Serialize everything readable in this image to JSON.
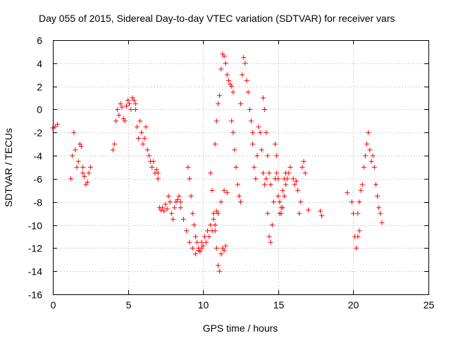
{
  "chart_data": {
    "type": "scatter",
    "title": "Day 055 of 2015, Sidereal Day-to-day VTEC variation (SDTVAR) for receiver vars",
    "xlabel": "GPS time / hours",
    "ylabel": "SDTVAR / TECUs",
    "xlim": [
      0,
      25
    ],
    "ylim": [
      -16,
      6
    ],
    "xticks": [
      0,
      5,
      10,
      15,
      20,
      25
    ],
    "yticks": [
      -16,
      -14,
      -12,
      -10,
      -8,
      -6,
      -4,
      -2,
      0,
      2,
      4,
      6
    ],
    "grid": true,
    "marker": "+",
    "color": "#ff0000",
    "segments": [
      {
        "x": [
          0.0,
          0.15,
          0.3
        ],
        "y": [
          -1.6,
          -1.5,
          -1.3
        ]
      },
      {
        "x": [
          1.2,
          1.3,
          1.4,
          1.5,
          1.6,
          1.7,
          1.8,
          1.9,
          2.0
        ],
        "y": [
          -6.0,
          -4.0,
          -2.0,
          -3.5,
          -5.0,
          -4.5,
          -3.0,
          -3.2,
          -5.0
        ]
      },
      {
        "x": [
          2.0,
          2.1,
          2.2,
          2.3,
          2.4,
          2.5
        ],
        "y": [
          -5.5,
          -5.8,
          -6.5,
          -6.3,
          -5.5,
          -5.0
        ]
      },
      {
        "x": [
          4.0,
          4.1,
          4.2,
          4.3,
          4.4,
          4.5,
          4.6,
          4.7,
          4.8,
          4.9,
          5.0,
          5.1,
          5.2,
          5.3,
          5.4,
          5.5
        ],
        "y": [
          -3.5,
          -3.0,
          -1.0,
          0.0,
          -0.5,
          0.5,
          0.2,
          -0.8,
          -1.0,
          0.3,
          0.8,
          0.5,
          0.0,
          1.0,
          0.8,
          0.5
        ]
      },
      {
        "x": [
          5.5,
          5.6,
          5.7,
          5.8,
          5.9,
          6.0,
          6.1,
          6.2,
          6.3,
          6.4,
          6.5,
          6.6,
          6.7,
          6.8,
          6.9,
          7.0
        ],
        "y": [
          0.0,
          -1.5,
          -2.5,
          -1.0,
          -2.0,
          -3.0,
          -2.5,
          -1.5,
          -3.5,
          -4.0,
          -4.5,
          -5.0,
          -4.5,
          -5.5,
          -5.2,
          -5.5
        ]
      },
      {
        "x": [
          7.0,
          7.1,
          7.2,
          7.3,
          7.4,
          7.5,
          7.6,
          7.7,
          7.8,
          7.9,
          8.0,
          8.1,
          8.2,
          8.3,
          8.4,
          8.5
        ],
        "y": [
          -6.0,
          -8.5,
          -8.7,
          -8.5,
          -8.8,
          -8.2,
          -8.6,
          -7.5,
          -8.0,
          -9.0,
          -9.5,
          -8.5,
          -8.0,
          -7.8,
          -7.5,
          -8.0
        ]
      },
      {
        "x": [
          8.5,
          8.7,
          8.9,
          9.1,
          9.3,
          9.5,
          9.7,
          9.9,
          10.1,
          10.3,
          10.5,
          10.7,
          10.9
        ],
        "y": [
          -8.5,
          -9.5,
          -10.5,
          -11.5,
          -12.0,
          -12.5,
          -12.2,
          -11.5,
          -11.0,
          -10.5,
          -10.0,
          -9.5,
          -8.8
        ]
      },
      {
        "x": [
          9.0,
          9.1,
          9.2,
          9.3,
          9.4,
          9.5,
          9.6,
          9.7,
          9.8
        ],
        "y": [
          -5.0,
          -6.0,
          -7.5,
          -9.0,
          -10.0,
          -11.0,
          -11.5,
          -12.0,
          -12.3
        ]
      },
      {
        "x": [
          9.9,
          10.0,
          10.2,
          10.4,
          10.6,
          10.8,
          11.0,
          11.2,
          11.4,
          11.6
        ],
        "y": [
          -12.0,
          -11.8,
          -11.5,
          -11.0,
          -10.5,
          -10.0,
          -9.0,
          -8.0,
          -7.0,
          -7.2
        ]
      },
      {
        "x": [
          10.5,
          10.6,
          10.7,
          10.8,
          10.9,
          11.0,
          11.1,
          11.2,
          11.3,
          11.4,
          11.5
        ],
        "y": [
          -5.5,
          -7.0,
          -9.0,
          -10.5,
          -12.0,
          -13.5,
          -14.0,
          -12.5,
          -12.0,
          -12.2,
          -11.8
        ]
      },
      {
        "x": [
          10.8,
          10.9,
          11.0,
          11.1,
          11.2,
          11.3,
          11.4,
          11.5,
          11.6,
          11.7,
          11.8,
          11.9,
          12.0
        ],
        "y": [
          -3.0,
          -1.0,
          0.5,
          1.2,
          3.5,
          4.8,
          4.6,
          4.0,
          3.0,
          2.5,
          2.2,
          2.0,
          1.5
        ]
      },
      {
        "x": [
          11.9,
          12.0,
          12.1,
          12.2,
          12.3,
          12.4,
          12.5
        ],
        "y": [
          -1.0,
          -2.0,
          -3.5,
          -5.0,
          -6.5,
          -7.5,
          -8.0
        ]
      },
      {
        "x": [
          12.5,
          12.6,
          12.7,
          12.8,
          12.9,
          13.0,
          13.1,
          13.2,
          13.3
        ],
        "y": [
          0.5,
          3.0,
          4.5,
          4.0,
          2.5,
          1.5,
          0.0,
          -1.0,
          -2.0
        ]
      },
      {
        "x": [
          13.3,
          13.4,
          13.5,
          13.6,
          13.7,
          13.8,
          13.9,
          14.0,
          14.1,
          14.2
        ],
        "y": [
          -3.0,
          -5.0,
          -6.0,
          -4.0,
          -1.5,
          -2.0,
          -3.5,
          -5.5,
          -6.5,
          -6.0
        ]
      },
      {
        "x": [
          14.0,
          14.1,
          14.2,
          14.3,
          14.4,
          14.5
        ],
        "y": [
          1.0,
          0.0,
          -2.0,
          -4.0,
          -5.5,
          -6.5
        ]
      },
      {
        "x": [
          14.3,
          14.4,
          14.5,
          14.6,
          14.7,
          14.8,
          14.9,
          15.0,
          15.1,
          15.2,
          15.3,
          15.4,
          15.5
        ],
        "y": [
          -9.0,
          -11.0,
          -11.5,
          -10.0,
          -8.0,
          -6.0,
          -5.5,
          -7.5,
          -9.0,
          -8.5,
          -7.0,
          -6.0,
          -5.5
        ]
      },
      {
        "x": [
          14.8,
          14.9,
          15.0,
          15.1,
          15.2,
          15.3,
          15.4,
          15.5,
          15.6,
          15.7,
          15.8
        ],
        "y": [
          -3.0,
          -4.0,
          -6.0,
          -8.0,
          -9.0,
          -8.5,
          -7.5,
          -6.5,
          -6.0,
          -5.5,
          -5.0
        ]
      },
      {
        "x": [
          16.0,
          16.1,
          16.2,
          16.3,
          16.4,
          16.5,
          16.6,
          16.7,
          16.8
        ],
        "y": [
          -6.0,
          -6.5,
          -6.2,
          -7.0,
          -9.0,
          -8.0,
          -5.0,
          -4.5,
          -5.5
        ]
      },
      {
        "x": [
          17.0,
          17.8,
          17.9
        ],
        "y": [
          -8.7,
          -8.8,
          -9.2
        ]
      },
      {
        "x": [
          19.6
        ],
        "y": [
          -7.2
        ]
      },
      {
        "x": [
          19.9,
          20.0,
          20.1,
          20.2,
          20.3,
          20.4
        ],
        "y": [
          -8.0,
          -9.0,
          -11.0,
          -12.0,
          -11.0,
          -10.5
        ]
      },
      {
        "x": [
          20.3,
          20.4,
          20.5,
          20.6,
          20.7,
          20.8
        ],
        "y": [
          -9.0,
          -8.0,
          -7.0,
          -6.5,
          -5.0,
          -4.0
        ]
      },
      {
        "x": [
          20.9,
          21.0,
          21.1,
          21.2,
          21.3,
          21.4,
          21.5,
          21.6,
          21.7,
          21.8,
          21.9
        ],
        "y": [
          -3.0,
          -2.0,
          -3.5,
          -4.5,
          -4.0,
          -5.0,
          -6.5,
          -7.5,
          -8.5,
          -9.0,
          -9.8
        ]
      }
    ]
  }
}
